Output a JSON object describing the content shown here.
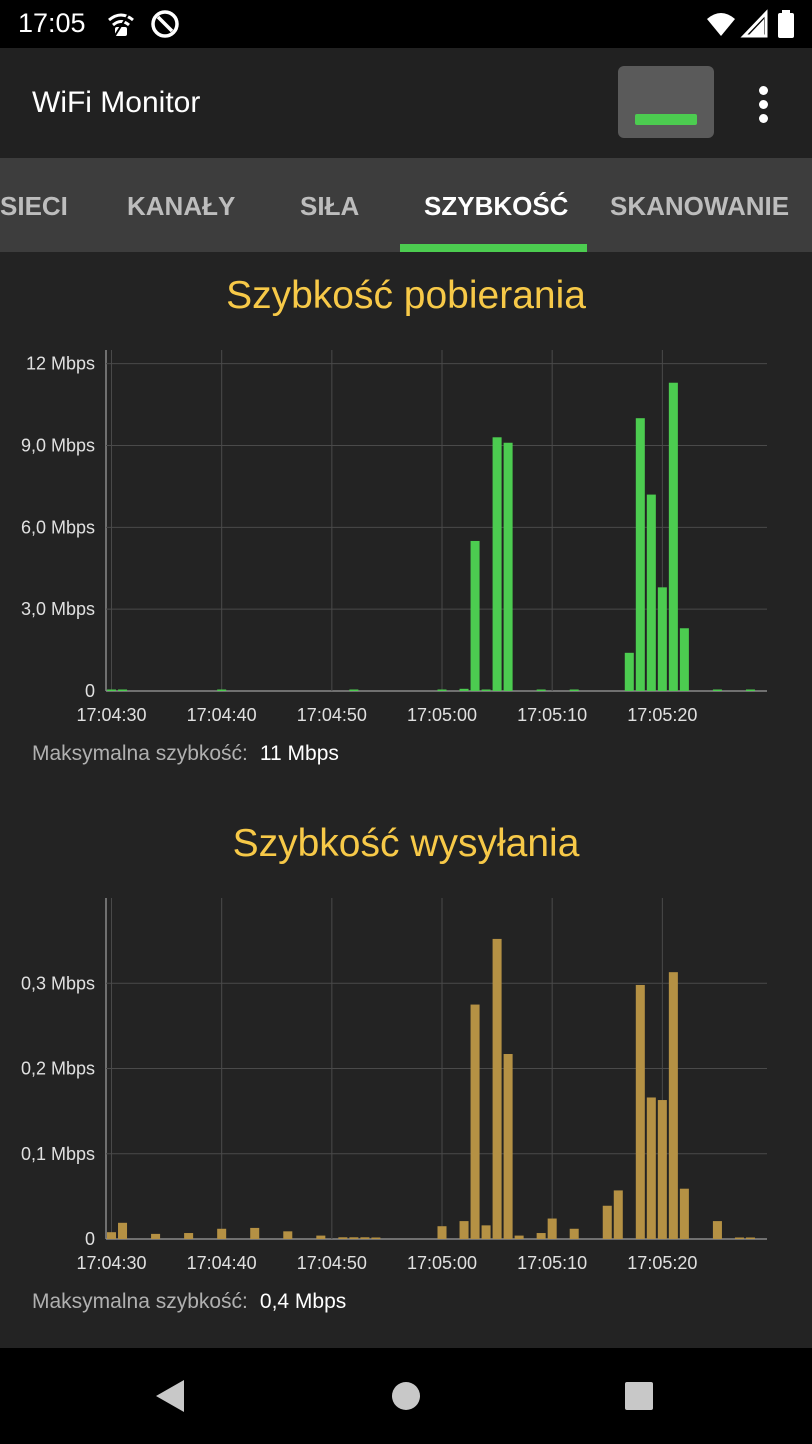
{
  "status_bar": {
    "time": "17:05",
    "icons_left": [
      "wifi-privacy-icon",
      "no-disturb-icon"
    ],
    "icons_right": [
      "wifi-signal-icon",
      "cell-signal-icon",
      "battery-icon"
    ]
  },
  "app_bar": {
    "title": "WiFi Monitor",
    "signal_indicator_color": "#4ccc50",
    "menu_icon": "more-vert-icon"
  },
  "tabs": [
    {
      "label": "SIECI",
      "active": false
    },
    {
      "label": "KANAŁY",
      "active": false
    },
    {
      "label": "SIŁA",
      "active": false
    },
    {
      "label": "SZYBKOŚĆ",
      "active": true
    },
    {
      "label": "SKANOWANIE",
      "active": false
    }
  ],
  "accent_color": "#4ccc50",
  "chart_data": [
    {
      "type": "bar",
      "title": "Szybkość pobierania",
      "color": "#4ccc50",
      "ylim": [
        0,
        12.5
      ],
      "yticks": [
        0,
        3,
        6,
        9,
        12
      ],
      "ytick_labels": [
        "0",
        "3,0 Mbps",
        "6,0 Mbps",
        "9,0 Mbps",
        "12 Mbps"
      ],
      "xlim": [
        0,
        60
      ],
      "xticks": [
        0,
        10,
        20,
        30,
        40,
        50
      ],
      "xtick_labels": [
        "17:04:30",
        "17:04:40",
        "17:04:50",
        "17:05:00",
        "17:05:10",
        "17:05:20"
      ],
      "x_unit": "seconds from 17:04:30",
      "bar_width_s": 1,
      "bars": [
        {
          "x": 0,
          "y": 0.03
        },
        {
          "x": 1,
          "y": 0.02
        },
        {
          "x": 10,
          "y": 0.02
        },
        {
          "x": 22,
          "y": 0.02
        },
        {
          "x": 30,
          "y": 0.03
        },
        {
          "x": 32,
          "y": 0.08
        },
        {
          "x": 33,
          "y": 5.5
        },
        {
          "x": 34,
          "y": 0.05
        },
        {
          "x": 35,
          "y": 9.3
        },
        {
          "x": 36,
          "y": 9.1
        },
        {
          "x": 39,
          "y": 0.02
        },
        {
          "x": 42,
          "y": 0.02
        },
        {
          "x": 47,
          "y": 1.4
        },
        {
          "x": 48,
          "y": 10.0
        },
        {
          "x": 49,
          "y": 7.2
        },
        {
          "x": 50,
          "y": 3.8
        },
        {
          "x": 51,
          "y": 11.3
        },
        {
          "x": 52,
          "y": 2.3
        },
        {
          "x": 55,
          "y": 0.03
        },
        {
          "x": 58,
          "y": 0.03
        }
      ],
      "max_label": "Maksymalna szybkość:",
      "max_value": "11 Mbps"
    },
    {
      "type": "bar",
      "title": "Szybkość wysyłania",
      "color": "#b59144",
      "ylim": [
        0,
        0.4
      ],
      "yticks": [
        0,
        0.1,
        0.2,
        0.3
      ],
      "ytick_labels": [
        "0",
        "0,1 Mbps",
        "0,2 Mbps",
        "0,3 Mbps"
      ],
      "xlim": [
        0,
        60
      ],
      "xticks": [
        0,
        10,
        20,
        30,
        40,
        50
      ],
      "xtick_labels": [
        "17:04:30",
        "17:04:40",
        "17:04:50",
        "17:05:00",
        "17:05:10",
        "17:05:20"
      ],
      "x_unit": "seconds from 17:04:30",
      "bar_width_s": 1,
      "bars": [
        {
          "x": 0,
          "y": 0.008
        },
        {
          "x": 1,
          "y": 0.019
        },
        {
          "x": 4,
          "y": 0.006
        },
        {
          "x": 7,
          "y": 0.007
        },
        {
          "x": 10,
          "y": 0.012
        },
        {
          "x": 13,
          "y": 0.013
        },
        {
          "x": 16,
          "y": 0.009
        },
        {
          "x": 19,
          "y": 0.004
        },
        {
          "x": 21,
          "y": 0.002
        },
        {
          "x": 22,
          "y": 0.002
        },
        {
          "x": 23,
          "y": 0.002
        },
        {
          "x": 24,
          "y": 0.001
        },
        {
          "x": 30,
          "y": 0.015
        },
        {
          "x": 32,
          "y": 0.021
        },
        {
          "x": 33,
          "y": 0.275
        },
        {
          "x": 34,
          "y": 0.016
        },
        {
          "x": 35,
          "y": 0.352
        },
        {
          "x": 36,
          "y": 0.217
        },
        {
          "x": 37,
          "y": 0.004
        },
        {
          "x": 39,
          "y": 0.007
        },
        {
          "x": 40,
          "y": 0.024
        },
        {
          "x": 42,
          "y": 0.012
        },
        {
          "x": 45,
          "y": 0.039
        },
        {
          "x": 46,
          "y": 0.057
        },
        {
          "x": 48,
          "y": 0.298
        },
        {
          "x": 49,
          "y": 0.166
        },
        {
          "x": 50,
          "y": 0.163
        },
        {
          "x": 51,
          "y": 0.313
        },
        {
          "x": 52,
          "y": 0.059
        },
        {
          "x": 55,
          "y": 0.021
        },
        {
          "x": 57,
          "y": 0.001
        },
        {
          "x": 58,
          "y": 0.001
        }
      ],
      "max_label": "Maksymalna szybkość:",
      "max_value": "0,4 Mbps"
    }
  ],
  "nav_bar": {
    "buttons": [
      "back-icon",
      "home-icon",
      "recents-icon"
    ]
  }
}
